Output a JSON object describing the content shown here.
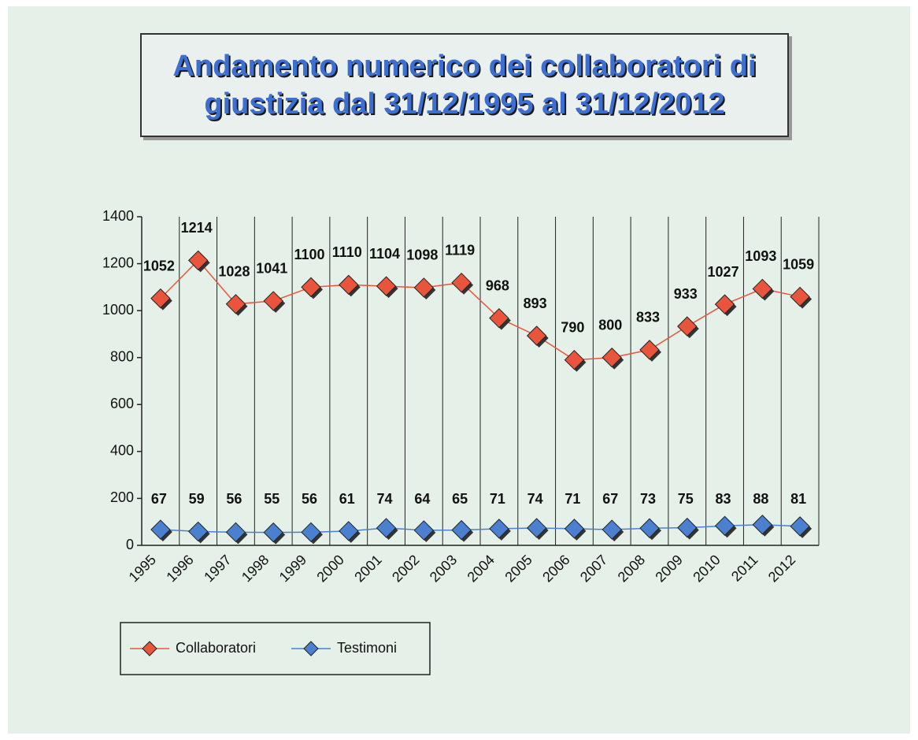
{
  "chart_data": {
    "type": "line",
    "title": "Andamento numerico dei collaboratori di giustizia dal 31/12/1995 al 31/12/2012",
    "categories": [
      "1995",
      "1996",
      "1997",
      "1998",
      "1999",
      "2000",
      "2001",
      "2002",
      "2003",
      "2004",
      "2005",
      "2006",
      "2007",
      "2008",
      "2009",
      "2010",
      "2011",
      "2012"
    ],
    "series": [
      {
        "name": "Collaboratori",
        "color": "#e8553c",
        "values": [
          1052,
          1214,
          1028,
          1041,
          1100,
          1110,
          1104,
          1098,
          1119,
          968,
          893,
          790,
          800,
          833,
          933,
          1027,
          1093,
          1059
        ]
      },
      {
        "name": "Testimoni",
        "color": "#4a80cf",
        "values": [
          67,
          59,
          56,
          55,
          56,
          61,
          74,
          64,
          65,
          71,
          74,
          71,
          67,
          73,
          75,
          83,
          88,
          81
        ]
      }
    ],
    "ylim": [
      0,
      1400
    ],
    "yticks": [
      0,
      200,
      400,
      600,
      800,
      1000,
      1200,
      1400
    ],
    "vertical_grid": true,
    "legend": "bottom-left"
  }
}
